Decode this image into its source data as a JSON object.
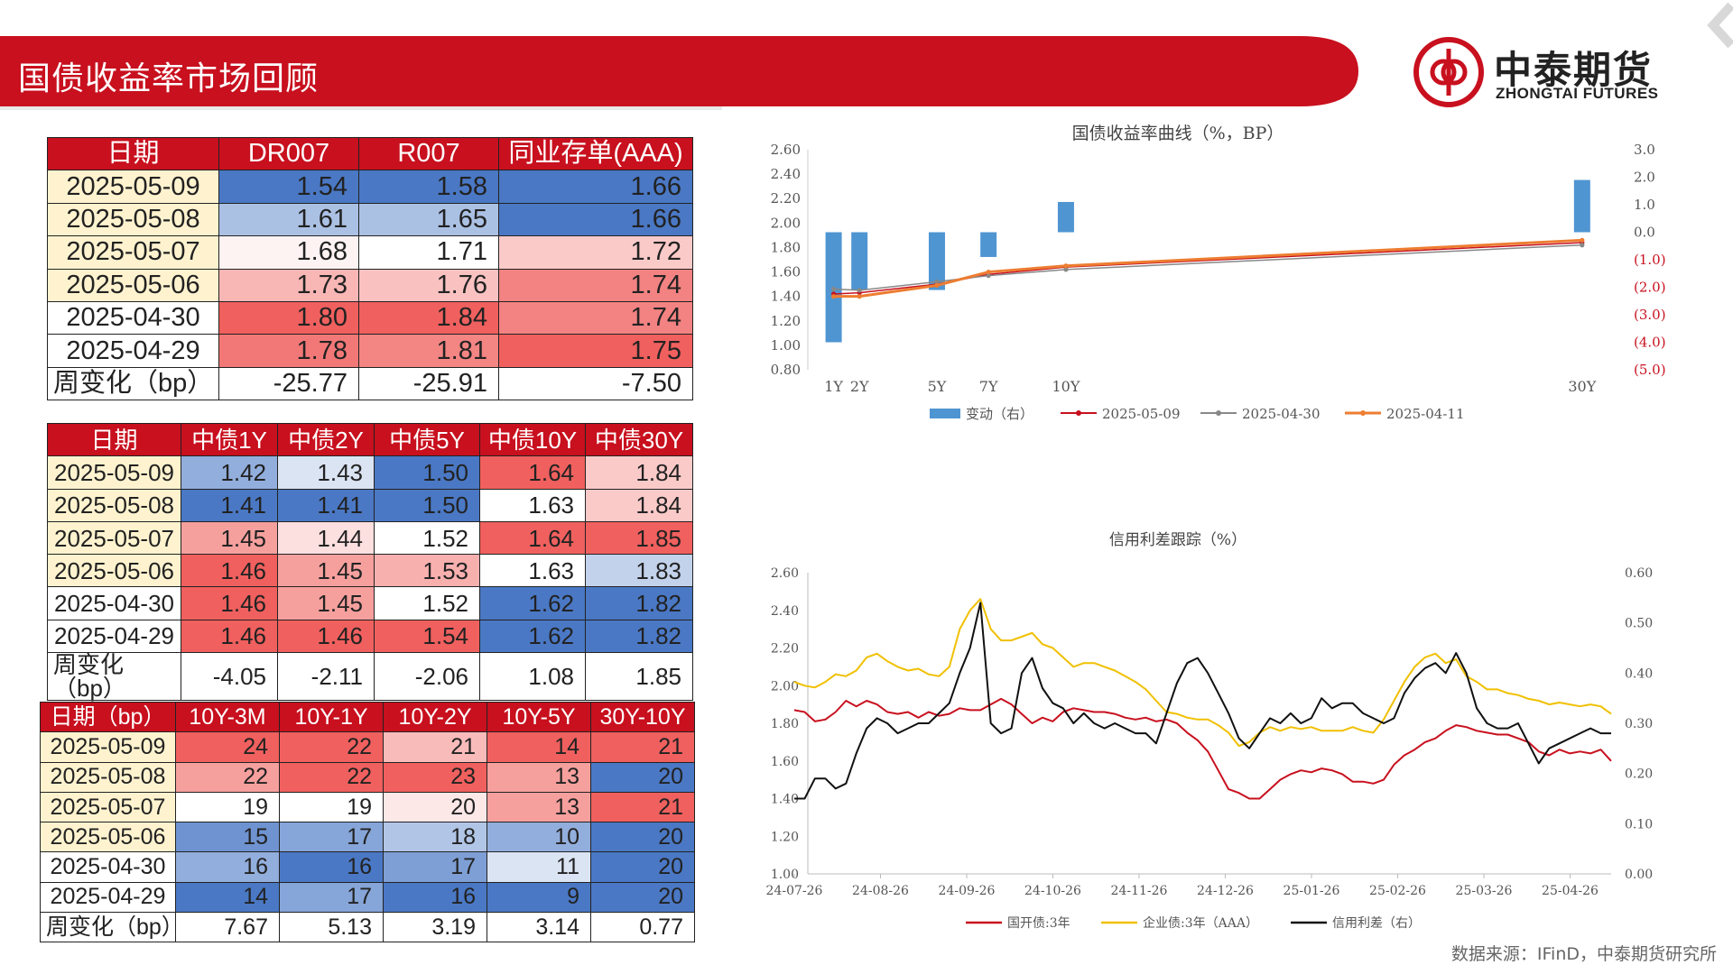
{
  "header": {
    "title": "国债收益率市场回顾",
    "logo_cn": "中泰期货",
    "logo_en": "ZHONGTAI FUTURES"
  },
  "colors": {
    "brand_red": "#c8101e",
    "blue_strong": "#4a78c4",
    "red_strong": "#f0605e"
  },
  "table_funding": {
    "headers": [
      "日期",
      "DR007",
      "R007",
      "同业存单(AAA)"
    ],
    "rows": [
      {
        "date": "2025-05-09",
        "values": [
          "1.54",
          "1.58",
          "1.66"
        ],
        "highlight": true
      },
      {
        "date": "2025-05-08",
        "values": [
          "1.61",
          "1.65",
          "1.66"
        ],
        "highlight": true
      },
      {
        "date": "2025-05-07",
        "values": [
          "1.68",
          "1.71",
          "1.72"
        ],
        "highlight": true
      },
      {
        "date": "2025-05-06",
        "values": [
          "1.73",
          "1.76",
          "1.74"
        ],
        "highlight": true
      },
      {
        "date": "2025-04-30",
        "values": [
          "1.80",
          "1.84",
          "1.74"
        ],
        "highlight": false
      },
      {
        "date": "2025-04-29",
        "values": [
          "1.78",
          "1.81",
          "1.75"
        ],
        "highlight": false
      }
    ],
    "change_label": "周变化（bp）",
    "change_values": [
      "-25.77",
      "-25.91",
      "-7.50"
    ]
  },
  "table_yields": {
    "headers": [
      "日期",
      "中债1Y",
      "中债2Y",
      "中债5Y",
      "中债10Y",
      "中债30Y"
    ],
    "rows": [
      {
        "date": "2025-05-09",
        "values": [
          "1.42",
          "1.43",
          "1.50",
          "1.64",
          "1.84"
        ],
        "highlight": true
      },
      {
        "date": "2025-05-08",
        "values": [
          "1.41",
          "1.41",
          "1.50",
          "1.63",
          "1.84"
        ],
        "highlight": true
      },
      {
        "date": "2025-05-07",
        "values": [
          "1.45",
          "1.44",
          "1.52",
          "1.64",
          "1.85"
        ],
        "highlight": true
      },
      {
        "date": "2025-05-06",
        "values": [
          "1.46",
          "1.45",
          "1.53",
          "1.63",
          "1.83"
        ],
        "highlight": true
      },
      {
        "date": "2025-04-30",
        "values": [
          "1.46",
          "1.45",
          "1.52",
          "1.62",
          "1.82"
        ],
        "highlight": false
      },
      {
        "date": "2025-04-29",
        "values": [
          "1.46",
          "1.46",
          "1.54",
          "1.62",
          "1.82"
        ],
        "highlight": false
      }
    ],
    "change_label": "周变化（bp）",
    "change_values": [
      "-4.05",
      "-2.11",
      "-2.06",
      "1.08",
      "1.85"
    ]
  },
  "table_spreads": {
    "headers": [
      "日期（bp）",
      "10Y-3M",
      "10Y-1Y",
      "10Y-2Y",
      "10Y-5Y",
      "30Y-10Y"
    ],
    "rows": [
      {
        "date": "2025-05-09",
        "values": [
          "24",
          "22",
          "21",
          "14",
          "21"
        ],
        "highlight": true
      },
      {
        "date": "2025-05-08",
        "values": [
          "22",
          "22",
          "23",
          "13",
          "20"
        ],
        "highlight": true
      },
      {
        "date": "2025-05-07",
        "values": [
          "19",
          "19",
          "20",
          "13",
          "21"
        ],
        "highlight": true
      },
      {
        "date": "2025-05-06",
        "values": [
          "15",
          "17",
          "18",
          "10",
          "20"
        ],
        "highlight": true
      },
      {
        "date": "2025-04-30",
        "values": [
          "16",
          "16",
          "17",
          "11",
          "20"
        ],
        "highlight": false
      },
      {
        "date": "2025-04-29",
        "values": [
          "14",
          "17",
          "16",
          "9",
          "20"
        ],
        "highlight": false
      }
    ],
    "change_label": "周变化（bp）",
    "change_values": [
      "7.67",
      "5.13",
      "3.19",
      "3.14",
      "0.77"
    ]
  },
  "chart_data": [
    {
      "type": "bar+line",
      "title": "国债收益率曲线（%，BP）",
      "categories": [
        "1Y",
        "2Y",
        "5Y",
        "7Y",
        "10Y",
        "30Y"
      ],
      "x_positions": [
        1,
        2,
        5,
        7,
        10,
        30
      ],
      "y_left_ticks": [
        "0.80",
        "1.00",
        "1.20",
        "1.40",
        "1.60",
        "1.80",
        "2.00",
        "2.20",
        "2.40",
        "2.60"
      ],
      "y_left_lim": [
        0.8,
        2.6
      ],
      "y_right_ticks": [
        "(5.0)",
        "(4.0)",
        "(3.0)",
        "(2.0)",
        "(1.0)",
        "0.0",
        "1.0",
        "2.0",
        "3.0"
      ],
      "y_right_lim": [
        -5,
        3
      ],
      "bars": {
        "name": "变动（右）",
        "values": [
          -4.0,
          -2.1,
          -2.1,
          -0.9,
          1.1,
          1.9
        ]
      },
      "series": [
        {
          "name": "2025-05-09",
          "values": [
            1.42,
            1.43,
            1.5,
            1.58,
            1.64,
            1.84
          ],
          "color": "#c8101e"
        },
        {
          "name": "2025-04-30",
          "values": [
            1.46,
            1.45,
            1.52,
            1.57,
            1.62,
            1.82
          ],
          "color": "#888888"
        },
        {
          "name": "2025-04-11",
          "values": [
            1.4,
            1.4,
            1.49,
            1.6,
            1.65,
            1.86
          ],
          "color": "#ed7d31"
        }
      ],
      "legend": [
        "变动（右）",
        "2025-05-09",
        "2025-04-30",
        "2025-04-11"
      ]
    },
    {
      "type": "line",
      "title": "信用利差跟踪（%）",
      "x_ticks": [
        "24-07-26",
        "24-08-26",
        "24-09-26",
        "24-10-26",
        "24-11-26",
        "24-12-26",
        "25-01-26",
        "25-02-26",
        "25-03-26",
        "25-04-26"
      ],
      "y_left_ticks": [
        "1.00",
        "1.20",
        "1.40",
        "1.60",
        "1.80",
        "2.00",
        "2.20",
        "2.40",
        "2.60"
      ],
      "y_left_lim": [
        1.0,
        2.6
      ],
      "y_right_ticks": [
        "0.00",
        "0.10",
        "0.20",
        "0.30",
        "0.40",
        "0.50",
        "0.60"
      ],
      "y_right_lim": [
        0,
        0.6
      ],
      "series": [
        {
          "name": "国开债:3年",
          "axis": "left",
          "color": "#c8101e",
          "values": [
            1.87,
            1.86,
            1.81,
            1.82,
            1.86,
            1.92,
            1.89,
            1.92,
            1.9,
            1.86,
            1.85,
            1.86,
            1.83,
            1.86,
            1.84,
            1.85,
            1.88,
            1.87,
            1.87,
            1.9,
            1.93,
            1.9,
            1.85,
            1.8,
            1.83,
            1.81,
            1.86,
            1.88,
            1.87,
            1.86,
            1.86,
            1.85,
            1.83,
            1.82,
            1.83,
            1.81,
            1.82,
            1.8,
            1.75,
            1.71,
            1.65,
            1.55,
            1.45,
            1.43,
            1.4,
            1.4,
            1.45,
            1.5,
            1.53,
            1.55,
            1.54,
            1.56,
            1.55,
            1.53,
            1.49,
            1.49,
            1.48,
            1.5,
            1.58,
            1.63,
            1.66,
            1.7,
            1.72,
            1.76,
            1.79,
            1.78,
            1.76,
            1.75,
            1.74,
            1.74,
            1.72,
            1.7,
            1.65,
            1.63,
            1.66,
            1.64,
            1.65,
            1.64,
            1.66,
            1.6
          ]
        },
        {
          "name": "企业债:3年（AAA）",
          "axis": "left",
          "color": "#f0c000",
          "values": [
            2.02,
            2.0,
            1.99,
            2.02,
            2.06,
            2.05,
            2.08,
            2.15,
            2.17,
            2.13,
            2.1,
            2.08,
            2.09,
            2.06,
            2.05,
            2.1,
            2.3,
            2.4,
            2.46,
            2.3,
            2.24,
            2.24,
            2.26,
            2.28,
            2.22,
            2.2,
            2.15,
            2.1,
            2.12,
            2.12,
            2.1,
            2.08,
            2.05,
            2.02,
            1.98,
            1.92,
            1.86,
            1.85,
            1.83,
            1.82,
            1.82,
            1.79,
            1.75,
            1.68,
            1.7,
            1.75,
            1.78,
            1.76,
            1.78,
            1.77,
            1.78,
            1.76,
            1.76,
            1.76,
            1.78,
            1.76,
            1.75,
            1.82,
            1.92,
            2.02,
            2.1,
            2.15,
            2.17,
            2.12,
            2.14,
            2.05,
            2.02,
            1.98,
            1.98,
            1.96,
            1.95,
            1.93,
            1.92,
            1.9,
            1.91,
            1.9,
            1.89,
            1.9,
            1.89,
            1.85
          ]
        },
        {
          "name": "信用利差（右）",
          "axis": "right",
          "color": "#111111",
          "values": [
            0.15,
            0.15,
            0.19,
            0.19,
            0.17,
            0.18,
            0.24,
            0.29,
            0.31,
            0.3,
            0.28,
            0.29,
            0.3,
            0.3,
            0.32,
            0.34,
            0.4,
            0.45,
            0.54,
            0.3,
            0.28,
            0.29,
            0.4,
            0.43,
            0.37,
            0.34,
            0.33,
            0.3,
            0.32,
            0.3,
            0.29,
            0.3,
            0.29,
            0.28,
            0.28,
            0.26,
            0.32,
            0.38,
            0.42,
            0.43,
            0.4,
            0.36,
            0.32,
            0.27,
            0.25,
            0.28,
            0.31,
            0.3,
            0.32,
            0.3,
            0.31,
            0.35,
            0.33,
            0.34,
            0.34,
            0.32,
            0.31,
            0.3,
            0.31,
            0.36,
            0.39,
            0.41,
            0.42,
            0.4,
            0.44,
            0.4,
            0.33,
            0.3,
            0.29,
            0.29,
            0.3,
            0.26,
            0.22,
            0.25,
            0.26,
            0.27,
            0.28,
            0.29,
            0.28,
            0.28
          ]
        }
      ],
      "legend": [
        "国开债:3年",
        "企业债:3年（AAA）",
        "信用利差（右）"
      ]
    }
  ],
  "footer": {
    "source": "数据来源：IFinD，中泰期货研究所"
  }
}
